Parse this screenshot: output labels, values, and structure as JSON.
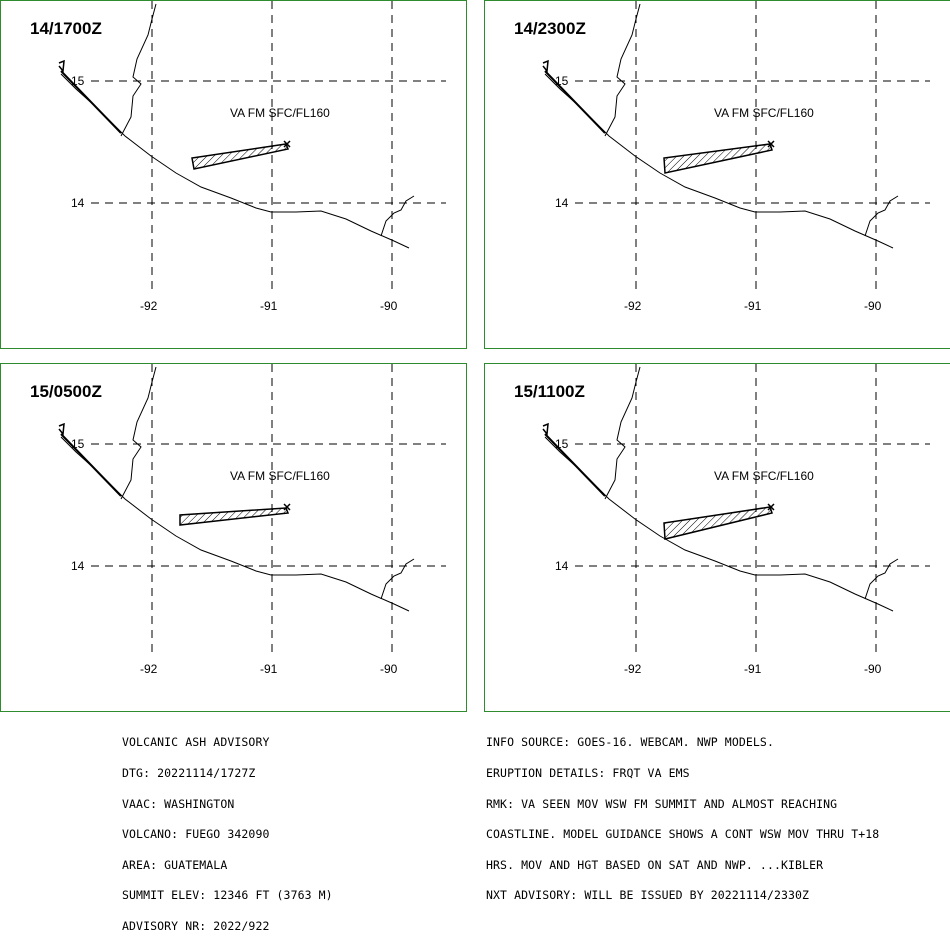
{
  "panels": [
    {
      "title": "14/1700Z",
      "label": "VA FM SFC/FL160"
    },
    {
      "title": "14/2300Z",
      "label": "VA FM SFC/FL160"
    },
    {
      "title": "15/0500Z",
      "label": "VA FM SFC/FL160"
    },
    {
      "title": "15/1100Z",
      "label": "VA FM SFC/FL160"
    }
  ],
  "grid": {
    "lat_labels": [
      "15",
      "14"
    ],
    "lon_labels": [
      "-92",
      "-91",
      "-90"
    ]
  },
  "advisory_left": [
    "VOLCANIC ASH ADVISORY",
    "DTG: 20221114/1727Z",
    "VAAC: WASHINGTON",
    "VOLCANO: FUEGO 342090",
    "AREA: GUATEMALA",
    "SUMMIT ELEV: 12346 FT (3763 M)",
    "ADVISORY NR: 2022/922"
  ],
  "advisory_right": [
    "INFO SOURCE: GOES-16. WEBCAM. NWP MODELS.",
    "ERUPTION DETAILS: FRQT VA EMS",
    "RMK: VA SEEN MOV WSW FM SUMMIT AND ALMOST REACHING",
    "COASTLINE. MODEL GUIDANCE SHOWS A CONT WSW MOV THRU T+18",
    "HRS. MOV AND HGT BASED ON SAT AND NWP. ...KIBLER",
    "NXT ADVISORY: WILL BE ISSUED BY 20221114/2330Z"
  ],
  "colors": {
    "frame": "#2e8b2e",
    "lines": "#000000"
  },
  "icons": {
    "volcano": "x-marker-icon"
  }
}
